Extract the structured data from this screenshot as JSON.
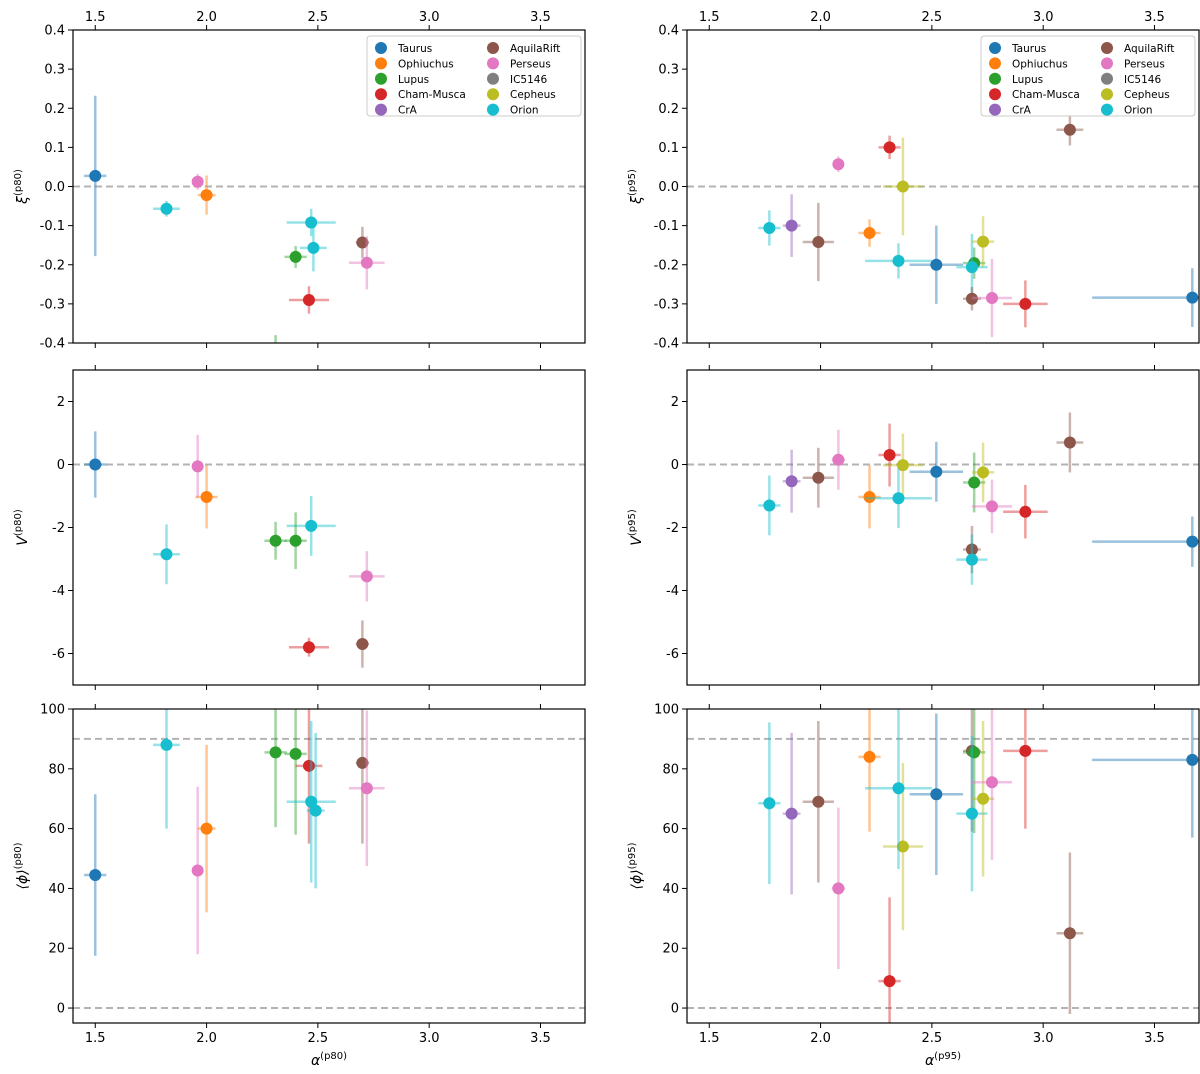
{
  "colors": {
    "Taurus": "#1f77b4",
    "Ophiuchus": "#ff7f0e",
    "Lupus": "#2ca02c",
    "Cham-Musca": "#d62728",
    "CrA": "#9467bd",
    "AquilaRift": "#8c564b",
    "Perseus": "#e377c2",
    "IC5146": "#7f7f7f",
    "Cepheus": "#bcbd22",
    "Orion": "#17becf"
  },
  "legend_entries": [
    "Taurus",
    "Ophiuchus",
    "Lupus",
    "Cham-Musca",
    "CrA",
    "AquilaRift",
    "Perseus",
    "IC5146",
    "Cepheus",
    "Orion"
  ],
  "chart_data": [
    {
      "id": "p80_xi",
      "type": "scatter",
      "column": "left",
      "row": 0,
      "xlim": [
        1.4,
        3.7
      ],
      "ylim": [
        -0.4,
        0.4
      ],
      "xticks": [
        "1.5",
        "2.0",
        "2.5",
        "3.0",
        "3.5"
      ],
      "xtick_values": [
        1.5,
        2.0,
        2.5,
        3.0,
        3.5
      ],
      "yticks": [
        "-0.4",
        "-0.3",
        "-0.2",
        "-0.1",
        "0.0",
        "0.1",
        "0.2",
        "0.3",
        "0.4"
      ],
      "ytick_values": [
        -0.4,
        -0.3,
        -0.2,
        -0.1,
        0.0,
        0.1,
        0.2,
        0.3,
        0.4
      ],
      "show_top_ticklabels": true,
      "show_bottom_ticklabels": false,
      "xlabel_base": "",
      "xlabel_sup": "",
      "ylabel_base": "ξ",
      "ylabel_sup": "(p80)",
      "hlines": [
        0.0
      ],
      "legend": "top-right",
      "points": [
        {
          "region": "Taurus",
          "x": 1.5,
          "y": 0.027,
          "xerr": 0.05,
          "yerr": 0.205
        },
        {
          "region": "Perseus",
          "x": 1.96,
          "y": 0.012,
          "xerr": 0.02,
          "yerr": 0.02
        },
        {
          "region": "Ophiuchus",
          "x": 2.0,
          "y": -0.022,
          "xerr": 0.04,
          "yerr": 0.05
        },
        {
          "region": "Orion",
          "x": 1.82,
          "y": -0.057,
          "xerr": 0.06,
          "yerr": 0.02
        },
        {
          "region": "Orion",
          "x": 2.47,
          "y": -0.092,
          "xerr": 0.11,
          "yerr": 0.035
        },
        {
          "region": "Orion",
          "x": 2.48,
          "y": -0.157,
          "xerr": 0.06,
          "yerr": 0.06
        },
        {
          "region": "Lupus",
          "x": 2.4,
          "y": -0.18,
          "xerr": 0.05,
          "yerr": 0.028
        },
        {
          "region": "AquilaRift",
          "x": 2.7,
          "y": -0.143,
          "xerr": 0.03,
          "yerr": 0.04
        },
        {
          "region": "Perseus",
          "x": 2.72,
          "y": -0.195,
          "xerr": 0.08,
          "yerr": 0.068
        },
        {
          "region": "Cham-Musca",
          "x": 2.46,
          "y": -0.29,
          "xerr": 0.09,
          "yerr": 0.035
        }
      ],
      "stray_bars": [
        {
          "region": "Lupus",
          "x": 2.31,
          "y": -0.44,
          "yerr": 0.06
        }
      ]
    },
    {
      "id": "p80_V",
      "type": "scatter",
      "column": "left",
      "row": 1,
      "xlim": [
        1.4,
        3.7
      ],
      "ylim": [
        -7.0,
        3.0
      ],
      "xticks": [
        "1.5",
        "2.0",
        "2.5",
        "3.0",
        "3.5"
      ],
      "xtick_values": [
        1.5,
        2.0,
        2.5,
        3.0,
        3.5
      ],
      "yticks": [
        "-6",
        "-4",
        "-2",
        "0",
        "2"
      ],
      "ytick_values": [
        -6,
        -4,
        -2,
        0,
        2
      ],
      "show_top_ticklabels": false,
      "show_bottom_ticklabels": false,
      "xlabel_base": "",
      "xlabel_sup": "",
      "ylabel_base": "V",
      "ylabel_sup": "(p80)",
      "hlines": [
        0.0
      ],
      "legend": "",
      "points": [
        {
          "region": "Taurus",
          "x": 1.5,
          "y": 0.0,
          "xerr": 0.05,
          "yerr": 1.05
        },
        {
          "region": "Perseus",
          "x": 1.96,
          "y": -0.06,
          "xerr": 0.02,
          "yerr": 1.0
        },
        {
          "region": "Ophiuchus",
          "x": 2.0,
          "y": -1.03,
          "xerr": 0.05,
          "yerr": 1.0
        },
        {
          "region": "Orion",
          "x": 1.82,
          "y": -2.85,
          "xerr": 0.06,
          "yerr": 0.95
        },
        {
          "region": "Orion",
          "x": 2.47,
          "y": -1.95,
          "xerr": 0.11,
          "yerr": 0.95
        },
        {
          "region": "Lupus",
          "x": 2.31,
          "y": -2.42,
          "xerr": 0.05,
          "yerr": 0.6
        },
        {
          "region": "Lupus",
          "x": 2.4,
          "y": -2.42,
          "xerr": 0.05,
          "yerr": 0.9
        },
        {
          "region": "Perseus",
          "x": 2.72,
          "y": -3.55,
          "xerr": 0.08,
          "yerr": 0.8
        },
        {
          "region": "Cham-Musca",
          "x": 2.46,
          "y": -5.8,
          "xerr": 0.09,
          "yerr": 0.3
        },
        {
          "region": "AquilaRift",
          "x": 2.7,
          "y": -5.7,
          "xerr": 0.03,
          "yerr": 0.75
        }
      ],
      "stray_bars": []
    },
    {
      "id": "p80_phi",
      "type": "scatter",
      "column": "left",
      "row": 2,
      "xlim": [
        1.4,
        3.7
      ],
      "ylim": [
        -5.0,
        100.0
      ],
      "xticks": [
        "1.5",
        "2.0",
        "2.5",
        "3.0",
        "3.5"
      ],
      "xtick_values": [
        1.5,
        2.0,
        2.5,
        3.0,
        3.5
      ],
      "yticks": [
        "0",
        "20",
        "40",
        "60",
        "80",
        "100"
      ],
      "ytick_values": [
        0,
        20,
        40,
        60,
        80,
        100
      ],
      "show_top_ticklabels": false,
      "show_bottom_ticklabels": true,
      "xlabel_base": "α",
      "xlabel_sup": "(p80)",
      "ylabel_base": "⟨ϕ⟩",
      "ylabel_sup": "(p80)",
      "hlines": [
        0.0,
        90.0
      ],
      "legend": "",
      "points": [
        {
          "region": "Taurus",
          "x": 1.5,
          "y": 44.5,
          "xerr": 0.05,
          "yerr": 27.0
        },
        {
          "region": "Orion",
          "x": 1.82,
          "y": 88.0,
          "xerr": 0.06,
          "yerr": 28.0
        },
        {
          "region": "Perseus",
          "x": 1.96,
          "y": 46.0,
          "xerr": 0.02,
          "yerr": 28.0
        },
        {
          "region": "Ophiuchus",
          "x": 2.0,
          "y": 60.0,
          "xerr": 0.04,
          "yerr": 28.0
        },
        {
          "region": "Lupus",
          "x": 2.31,
          "y": 85.5,
          "xerr": 0.05,
          "yerr": 25.0
        },
        {
          "region": "Lupus",
          "x": 2.4,
          "y": 85.0,
          "xerr": 0.05,
          "yerr": 27.0
        },
        {
          "region": "Cham-Musca",
          "x": 2.46,
          "y": 81.0,
          "xerr": 0.06,
          "yerr": 26.0
        },
        {
          "region": "Orion",
          "x": 2.47,
          "y": 69.0,
          "xerr": 0.11,
          "yerr": 27.0
        },
        {
          "region": "Orion",
          "x": 2.49,
          "y": 66.0,
          "xerr": 0.04,
          "yerr": 26.0
        },
        {
          "region": "AquilaRift",
          "x": 2.7,
          "y": 82.0,
          "xerr": 0.03,
          "yerr": 27.0
        },
        {
          "region": "Perseus",
          "x": 2.72,
          "y": 73.5,
          "xerr": 0.08,
          "yerr": 26.0
        }
      ],
      "stray_bars": []
    },
    {
      "id": "p95_xi",
      "type": "scatter",
      "column": "right",
      "row": 0,
      "xlim": [
        1.4,
        3.7
      ],
      "ylim": [
        -0.4,
        0.4
      ],
      "xticks": [
        "1.5",
        "2.0",
        "2.5",
        "3.0",
        "3.5"
      ],
      "xtick_values": [
        1.5,
        2.0,
        2.5,
        3.0,
        3.5
      ],
      "yticks": [
        "-0.4",
        "-0.3",
        "-0.2",
        "-0.1",
        "0.0",
        "0.1",
        "0.2",
        "0.3",
        "0.4"
      ],
      "ytick_values": [
        -0.4,
        -0.3,
        -0.2,
        -0.1,
        0.0,
        0.1,
        0.2,
        0.3,
        0.4
      ],
      "show_top_ticklabels": true,
      "show_bottom_ticklabels": false,
      "xlabel_base": "",
      "xlabel_sup": "",
      "ylabel_base": "ξ",
      "ylabel_sup": "(p95)",
      "hlines": [
        0.0
      ],
      "legend": "top-right",
      "points": [
        {
          "region": "Orion",
          "x": 1.77,
          "y": -0.106,
          "xerr": 0.05,
          "yerr": 0.045
        },
        {
          "region": "CrA",
          "x": 1.87,
          "y": -0.1,
          "xerr": 0.04,
          "yerr": 0.08
        },
        {
          "region": "AquilaRift",
          "x": 1.99,
          "y": -0.142,
          "xerr": 0.07,
          "yerr": 0.1
        },
        {
          "region": "Perseus",
          "x": 2.08,
          "y": 0.057,
          "xerr": 0.02,
          "yerr": 0.02
        },
        {
          "region": "Ophiuchus",
          "x": 2.22,
          "y": -0.119,
          "xerr": 0.05,
          "yerr": 0.035
        },
        {
          "region": "Cham-Musca",
          "x": 2.31,
          "y": 0.1,
          "xerr": 0.05,
          "yerr": 0.03
        },
        {
          "region": "Cepheus",
          "x": 2.37,
          "y": 0.0,
          "xerr": 0.09,
          "yerr": 0.125
        },
        {
          "region": "Orion",
          "x": 2.35,
          "y": -0.19,
          "xerr": 0.15,
          "yerr": 0.045
        },
        {
          "region": "Taurus",
          "x": 2.52,
          "y": -0.2,
          "xerr": 0.12,
          "yerr": 0.1
        },
        {
          "region": "Lupus",
          "x": 2.69,
          "y": -0.196,
          "xerr": 0.05,
          "yerr": 0.04
        },
        {
          "region": "Orion",
          "x": 2.68,
          "y": -0.206,
          "xerr": 0.07,
          "yerr": 0.085
        },
        {
          "region": "Cepheus",
          "x": 2.73,
          "y": -0.141,
          "xerr": 0.05,
          "yerr": 0.065
        },
        {
          "region": "AquilaRift",
          "x": 2.68,
          "y": -0.287,
          "xerr": 0.04,
          "yerr": 0.03
        },
        {
          "region": "Perseus",
          "x": 2.77,
          "y": -0.285,
          "xerr": 0.09,
          "yerr": 0.1
        },
        {
          "region": "Cham-Musca",
          "x": 2.92,
          "y": -0.3,
          "xerr": 0.1,
          "yerr": 0.06
        },
        {
          "region": "AquilaRift",
          "x": 3.12,
          "y": 0.145,
          "xerr": 0.06,
          "yerr": 0.04
        },
        {
          "region": "Taurus",
          "x": 3.67,
          "y": -0.284,
          "xerr": 0.45,
          "yerr": 0.075
        }
      ],
      "stray_bars": []
    },
    {
      "id": "p95_V",
      "type": "scatter",
      "column": "right",
      "row": 1,
      "xlim": [
        1.4,
        3.7
      ],
      "ylim": [
        -7.0,
        3.0
      ],
      "xticks": [
        "1.5",
        "2.0",
        "2.5",
        "3.0",
        "3.5"
      ],
      "xtick_values": [
        1.5,
        2.0,
        2.5,
        3.0,
        3.5
      ],
      "yticks": [
        "-6",
        "-4",
        "-2",
        "0",
        "2"
      ],
      "ytick_values": [
        -6,
        -4,
        -2,
        0,
        2
      ],
      "show_top_ticklabels": false,
      "show_bottom_ticklabels": false,
      "xlabel_base": "",
      "xlabel_sup": "",
      "ylabel_base": "V",
      "ylabel_sup": "(p95)",
      "hlines": [
        0.0
      ],
      "legend": "",
      "points": [
        {
          "region": "Orion",
          "x": 1.77,
          "y": -1.3,
          "xerr": 0.05,
          "yerr": 0.95
        },
        {
          "region": "CrA",
          "x": 1.87,
          "y": -0.53,
          "xerr": 0.04,
          "yerr": 1.0
        },
        {
          "region": "AquilaRift",
          "x": 1.99,
          "y": -0.42,
          "xerr": 0.07,
          "yerr": 0.95
        },
        {
          "region": "Perseus",
          "x": 2.08,
          "y": 0.15,
          "xerr": 0.03,
          "yerr": 0.95
        },
        {
          "region": "Ophiuchus",
          "x": 2.22,
          "y": -1.03,
          "xerr": 0.05,
          "yerr": 1.0
        },
        {
          "region": "Cham-Musca",
          "x": 2.31,
          "y": 0.3,
          "xerr": 0.05,
          "yerr": 1.0
        },
        {
          "region": "Cepheus",
          "x": 2.37,
          "y": -0.02,
          "xerr": 0.09,
          "yerr": 1.0
        },
        {
          "region": "Orion",
          "x": 2.35,
          "y": -1.07,
          "xerr": 0.15,
          "yerr": 0.95
        },
        {
          "region": "Taurus",
          "x": 2.52,
          "y": -0.23,
          "xerr": 0.12,
          "yerr": 0.95
        },
        {
          "region": "Lupus",
          "x": 2.69,
          "y": -0.57,
          "xerr": 0.05,
          "yerr": 0.95
        },
        {
          "region": "Cepheus",
          "x": 2.73,
          "y": -0.25,
          "xerr": 0.05,
          "yerr": 0.95
        },
        {
          "region": "Perseus",
          "x": 2.77,
          "y": -1.33,
          "xerr": 0.09,
          "yerr": 0.85
        },
        {
          "region": "AquilaRift",
          "x": 2.68,
          "y": -2.7,
          "xerr": 0.04,
          "yerr": 0.75
        },
        {
          "region": "Orion",
          "x": 2.68,
          "y": -3.02,
          "xerr": 0.07,
          "yerr": 0.8
        },
        {
          "region": "Cham-Musca",
          "x": 2.92,
          "y": -1.5,
          "xerr": 0.1,
          "yerr": 0.85
        },
        {
          "region": "AquilaRift",
          "x": 3.12,
          "y": 0.7,
          "xerr": 0.06,
          "yerr": 0.95
        },
        {
          "region": "Taurus",
          "x": 3.67,
          "y": -2.45,
          "xerr": 0.45,
          "yerr": 0.8
        }
      ],
      "stray_bars": []
    },
    {
      "id": "p95_phi",
      "type": "scatter",
      "column": "right",
      "row": 2,
      "xlim": [
        1.4,
        3.7
      ],
      "ylim": [
        -5.0,
        100.0
      ],
      "xticks": [
        "1.5",
        "2.0",
        "2.5",
        "3.0",
        "3.5"
      ],
      "xtick_values": [
        1.5,
        2.0,
        2.5,
        3.0,
        3.5
      ],
      "yticks": [
        "0",
        "20",
        "40",
        "60",
        "80",
        "100"
      ],
      "ytick_values": [
        0,
        20,
        40,
        60,
        80,
        100
      ],
      "show_top_ticklabels": false,
      "show_bottom_ticklabels": true,
      "xlabel_base": "α",
      "xlabel_sup": "(p95)",
      "ylabel_base": "⟨ϕ⟩",
      "ylabel_sup": "(p95)",
      "hlines": [
        0.0,
        90.0
      ],
      "legend": "",
      "points": [
        {
          "region": "Orion",
          "x": 1.77,
          "y": 68.5,
          "xerr": 0.05,
          "yerr": 27.0
        },
        {
          "region": "CrA",
          "x": 1.87,
          "y": 65.0,
          "xerr": 0.04,
          "yerr": 27.0
        },
        {
          "region": "AquilaRift",
          "x": 1.99,
          "y": 69.0,
          "xerr": 0.07,
          "yerr": 27.0
        },
        {
          "region": "Perseus",
          "x": 2.08,
          "y": 40.0,
          "xerr": 0.03,
          "yerr": 27.0
        },
        {
          "region": "Ophiuchus",
          "x": 2.22,
          "y": 84.0,
          "xerr": 0.05,
          "yerr": 25.0
        },
        {
          "region": "Cham-Musca",
          "x": 2.31,
          "y": 9.0,
          "xerr": 0.05,
          "yerr": 28.0
        },
        {
          "region": "Cepheus",
          "x": 2.37,
          "y": 54.0,
          "xerr": 0.09,
          "yerr": 28.0
        },
        {
          "region": "Orion",
          "x": 2.35,
          "y": 73.5,
          "xerr": 0.15,
          "yerr": 27.0
        },
        {
          "region": "Taurus",
          "x": 2.52,
          "y": 71.5,
          "xerr": 0.12,
          "yerr": 27.0
        },
        {
          "region": "AquilaRift",
          "x": 2.68,
          "y": 86.0,
          "xerr": 0.04,
          "yerr": 27.0
        },
        {
          "region": "Lupus",
          "x": 2.69,
          "y": 85.5,
          "xerr": 0.05,
          "yerr": 27.0
        },
        {
          "region": "Orion",
          "x": 2.68,
          "y": 65.0,
          "xerr": 0.07,
          "yerr": 26.0
        },
        {
          "region": "Cepheus",
          "x": 2.73,
          "y": 70.0,
          "xerr": 0.05,
          "yerr": 26.0
        },
        {
          "region": "Perseus",
          "x": 2.77,
          "y": 75.5,
          "xerr": 0.09,
          "yerr": 26.0
        },
        {
          "region": "Cham-Musca",
          "x": 2.92,
          "y": 86.0,
          "xerr": 0.1,
          "yerr": 26.0
        },
        {
          "region": "AquilaRift",
          "x": 3.12,
          "y": 25.0,
          "xerr": 0.06,
          "yerr": 27.0
        },
        {
          "region": "Taurus",
          "x": 3.67,
          "y": 83.0,
          "xerr": 0.45,
          "yerr": 26.0
        }
      ],
      "stray_bars": []
    }
  ]
}
